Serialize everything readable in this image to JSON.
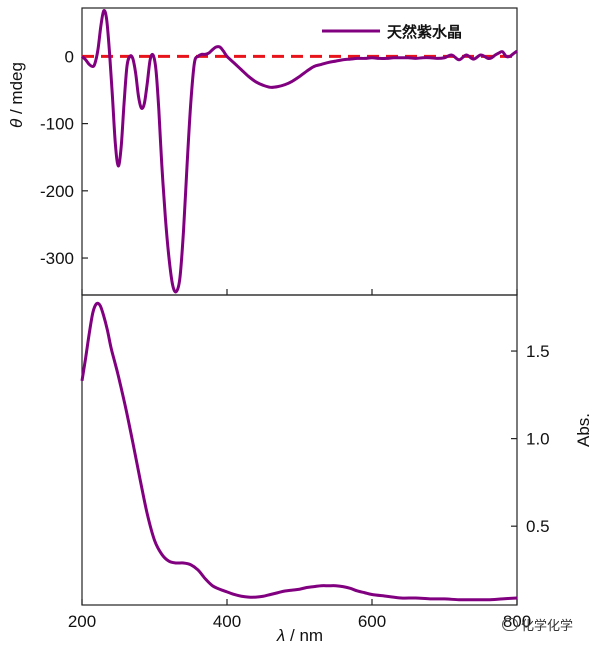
{
  "chart_data": [
    {
      "type": "line",
      "ylabel_symbol": "θ",
      "ylabel_unit": " / mdeg",
      "ylim": [
        -355,
        72
      ],
      "xlim": [
        200,
        800
      ],
      "yticks": [
        0,
        -100,
        -200,
        -300
      ],
      "reference_line": {
        "y": 0,
        "color": "#e8141b",
        "style": "dashed"
      },
      "legend": {
        "position": "top-right",
        "label": "天然紫水晶"
      },
      "series": [
        {
          "name": "天然紫水晶",
          "color": "#800080",
          "x": [
            200,
            205,
            210,
            215,
            218,
            222,
            226,
            230,
            234,
            238,
            242,
            246,
            250,
            254,
            258,
            262,
            266,
            270,
            274,
            278,
            282,
            286,
            290,
            294,
            298,
            302,
            306,
            310,
            315,
            320,
            325,
            330,
            335,
            340,
            345,
            350,
            355,
            360,
            365,
            370,
            375,
            380,
            385,
            390,
            395,
            400,
            410,
            420,
            430,
            440,
            450,
            460,
            470,
            480,
            490,
            500,
            510,
            520,
            530,
            540,
            550,
            560,
            570,
            580,
            590,
            600,
            610,
            620,
            630,
            640,
            650,
            660,
            670,
            680,
            690,
            700,
            710,
            720,
            730,
            740,
            750,
            760,
            765,
            770,
            775,
            780,
            785,
            790,
            795,
            800
          ],
          "values": [
            0,
            -5,
            -12,
            -15,
            -10,
            10,
            45,
            68,
            55,
            5,
            -60,
            -130,
            -163,
            -135,
            -70,
            -15,
            0,
            -3,
            -25,
            -60,
            -77,
            -70,
            -40,
            -5,
            2,
            -20,
            -80,
            -160,
            -240,
            -300,
            -340,
            -350,
            -330,
            -260,
            -160,
            -70,
            -10,
            0,
            3,
            3,
            5,
            10,
            14,
            14,
            8,
            0,
            -10,
            -20,
            -30,
            -38,
            -43,
            -46,
            -45,
            -42,
            -37,
            -30,
            -22,
            -15,
            -12,
            -9,
            -7,
            -5,
            -4,
            -3,
            -3,
            -2,
            -3,
            -3,
            -2,
            -2,
            -2,
            -3,
            -2,
            -2,
            -3,
            -2,
            2,
            -5,
            2,
            -4,
            2,
            -3,
            -2,
            2,
            5,
            7,
            0,
            0,
            4,
            8
          ]
        }
      ]
    },
    {
      "type": "line",
      "ylabel": "Abs.",
      "xlabel_symbol": "λ",
      "xlabel_unit": " / nm",
      "ylim": [
        0.05,
        1.82
      ],
      "xlim": [
        200,
        800
      ],
      "yticks": [
        "0.5",
        "1.0",
        "1.5"
      ],
      "xticks": [
        "200",
        "400",
        "600",
        "800"
      ],
      "series": [
        {
          "name": "天然紫水晶",
          "color": "#800080",
          "x": [
            200,
            205,
            210,
            215,
            220,
            225,
            230,
            235,
            240,
            245,
            250,
            260,
            270,
            280,
            290,
            300,
            310,
            320,
            330,
            340,
            350,
            360,
            370,
            380,
            390,
            400,
            410,
            420,
            430,
            440,
            450,
            460,
            470,
            480,
            490,
            500,
            510,
            520,
            530,
            540,
            550,
            560,
            570,
            580,
            590,
            600,
            620,
            640,
            660,
            680,
            700,
            720,
            740,
            760,
            780,
            800
          ],
          "values": [
            1.33,
            1.46,
            1.6,
            1.72,
            1.77,
            1.76,
            1.7,
            1.62,
            1.52,
            1.44,
            1.36,
            1.18,
            0.98,
            0.77,
            0.57,
            0.42,
            0.34,
            0.3,
            0.29,
            0.29,
            0.28,
            0.25,
            0.2,
            0.16,
            0.14,
            0.125,
            0.11,
            0.1,
            0.095,
            0.095,
            0.1,
            0.11,
            0.12,
            0.13,
            0.135,
            0.14,
            0.15,
            0.155,
            0.16,
            0.16,
            0.16,
            0.155,
            0.145,
            0.13,
            0.12,
            0.11,
            0.1,
            0.09,
            0.09,
            0.085,
            0.085,
            0.08,
            0.08,
            0.08,
            0.085,
            0.09
          ]
        }
      ]
    }
  ],
  "watermark": {
    "label": "化学化学",
    "icon": "wechat-icon"
  }
}
